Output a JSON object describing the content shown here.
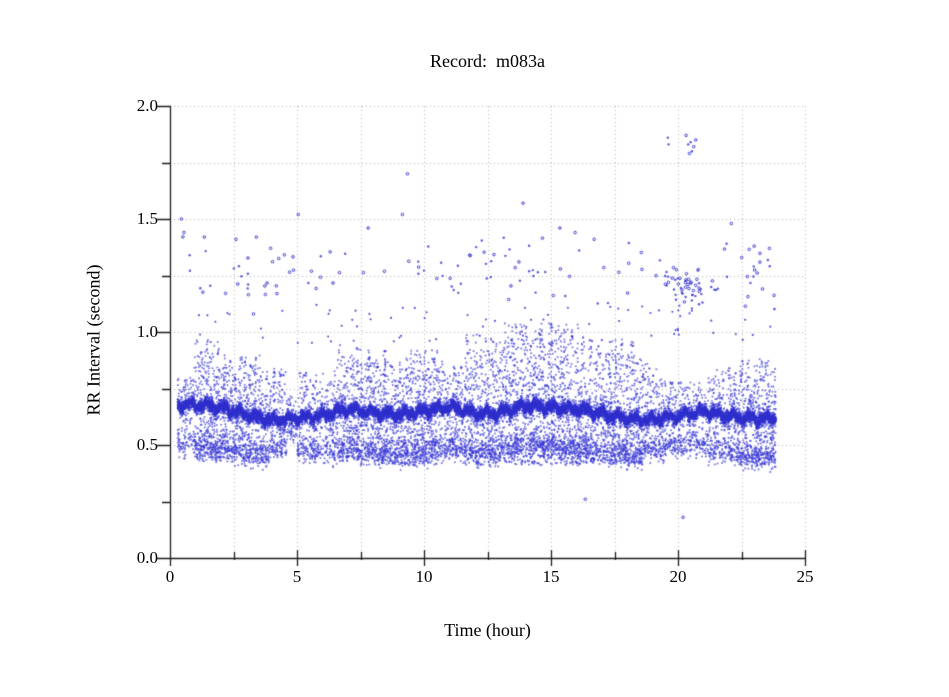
{
  "chart_data": {
    "type": "scatter",
    "title": "Record:  m083a",
    "xlabel": "Time (hour)",
    "ylabel": "RR Interval (second)",
    "xlim": [
      0,
      25
    ],
    "ylim": [
      0.0,
      2.0
    ],
    "x_tick_values": [
      0,
      5,
      10,
      15,
      20,
      25
    ],
    "x_tick_labels": [
      "0",
      "5",
      "10",
      "15",
      "20",
      "25"
    ],
    "x_minor_step": 2.5,
    "y_tick_values": [
      0.0,
      0.5,
      1.0,
      1.5,
      2.0
    ],
    "y_tick_labels": [
      "0.0",
      "0.5",
      "1.0",
      "1.5",
      "2.0"
    ],
    "y_minor_step": 0.25,
    "grid": "dotted, every 0.25 s horizontal and 2.5 h vertical",
    "background": "#ffffff",
    "point_color": "#3939d5",
    "point_stroke_color": "#2f2fcd",
    "grid_color": "#b4b4b4",
    "axis_color": "#1c1c1c",
    "marker": "tiny open/filled circle ~2px",
    "seed": 83,
    "t_range": [
      0.3,
      23.85
    ],
    "points_per_hour": 780,
    "core_points_per_hour": 300,
    "core_track": [
      [
        0.0,
        0.67
      ],
      [
        1.0,
        0.668
      ],
      [
        2.0,
        0.66
      ],
      [
        3.0,
        0.64
      ],
      [
        4.0,
        0.615
      ],
      [
        5.0,
        0.615
      ],
      [
        6.0,
        0.62
      ],
      [
        7.0,
        0.655
      ],
      [
        8.0,
        0.65
      ],
      [
        9.0,
        0.64
      ],
      [
        10.0,
        0.645
      ],
      [
        11.0,
        0.66
      ],
      [
        12.0,
        0.64
      ],
      [
        13.0,
        0.65
      ],
      [
        14.0,
        0.68
      ],
      [
        15.0,
        0.66
      ],
      [
        16.0,
        0.65
      ],
      [
        17.0,
        0.64
      ],
      [
        18.0,
        0.625
      ],
      [
        19.0,
        0.615
      ],
      [
        20.0,
        0.62
      ],
      [
        21.0,
        0.64
      ],
      [
        22.0,
        0.63
      ],
      [
        23.0,
        0.625
      ],
      [
        24.0,
        0.62
      ]
    ],
    "core_wiggle": [
      [
        0.012,
        9.7
      ],
      [
        0.007,
        23.3
      ],
      [
        0.008,
        1.3
      ]
    ],
    "segments": [
      {
        "t": [
          0.3,
          0.95
        ],
        "top": 0.8,
        "bot": 0.46,
        "d": 0.55
      },
      {
        "t": [
          0.95,
          2.1
        ],
        "top": 0.95,
        "bot": 0.42,
        "d": 0.95
      },
      {
        "t": [
          2.1,
          3.9
        ],
        "top": 0.88,
        "bot": 0.41,
        "d": 0.9
      },
      {
        "t": [
          3.9,
          4.6
        ],
        "top": 0.82,
        "bot": 0.45,
        "d": 0.6
      },
      {
        "t": [
          4.6,
          5.0
        ],
        "top": 0.72,
        "bot": 0.52,
        "d": 0.35
      },
      {
        "t": [
          5.0,
          6.4
        ],
        "top": 0.8,
        "bot": 0.44,
        "d": 0.6
      },
      {
        "t": [
          6.4,
          7.6
        ],
        "top": 0.93,
        "bot": 0.42,
        "d": 0.85
      },
      {
        "t": [
          7.6,
          10.6
        ],
        "top": 0.9,
        "bot": 0.4,
        "d": 0.9
      },
      {
        "t": [
          10.6,
          11.6
        ],
        "top": 0.85,
        "bot": 0.44,
        "d": 0.7
      },
      {
        "t": [
          11.6,
          13.1
        ],
        "top": 0.97,
        "bot": 0.4,
        "d": 0.9
      },
      {
        "t": [
          13.1,
          16.4
        ],
        "top": 1.02,
        "bot": 0.4,
        "d": 1.0
      },
      {
        "t": [
          16.4,
          18.6
        ],
        "top": 0.95,
        "bot": 0.41,
        "d": 0.9
      },
      {
        "t": [
          18.6,
          19.5
        ],
        "top": 0.84,
        "bot": 0.44,
        "d": 0.65
      },
      {
        "t": [
          19.5,
          21.2
        ],
        "top": 0.76,
        "bot": 0.46,
        "d": 0.5
      },
      {
        "t": [
          21.2,
          22.4
        ],
        "top": 0.82,
        "bot": 0.43,
        "d": 0.65
      },
      {
        "t": [
          22.4,
          23.85
        ],
        "top": 0.86,
        "bot": 0.4,
        "d": 0.9
      }
    ],
    "upper_scatter": [
      {
        "t": [
          0.3,
          5.0
        ],
        "n": 30
      },
      {
        "t": [
          5.0,
          8.0
        ],
        "n": 10
      },
      {
        "t": [
          8.0,
          12.0
        ],
        "n": 18
      },
      {
        "t": [
          12.0,
          17.0
        ],
        "n": 30
      },
      {
        "t": [
          17.0,
          19.4
        ],
        "n": 10
      },
      {
        "t": [
          21.0,
          23.9
        ],
        "n": 24
      }
    ],
    "upper_scatter_band": {
      "center": 1.27,
      "sigma": 0.085,
      "min": 1.08,
      "max": 1.47
    },
    "upper_cluster": {
      "t": [
        19.4,
        21.0
      ],
      "n": 48,
      "center": 1.21,
      "sigma": 0.045,
      "min": 1.12,
      "max": 1.31
    },
    "upper_cluster_trail": {
      "t": [
        19.6,
        20.6
      ],
      "n": 10,
      "y": [
        0.98,
        1.12
      ]
    },
    "transition_scatter": {
      "t": [
        0.9,
        23.85
      ],
      "n": 70,
      "y": [
        0.95,
        1.12
      ]
    },
    "mid_high_points": [
      [
        0.45,
        1.5
      ],
      [
        0.55,
        1.44
      ],
      [
        1.35,
        1.42
      ],
      [
        2.6,
        1.41
      ],
      [
        3.4,
        1.42
      ],
      [
        5.05,
        1.52
      ],
      [
        7.8,
        1.46
      ],
      [
        9.15,
        1.52
      ],
      [
        9.35,
        1.7
      ],
      [
        13.9,
        1.57
      ],
      [
        15.35,
        1.46
      ],
      [
        15.95,
        1.44
      ],
      [
        16.7,
        1.41
      ],
      [
        22.1,
        1.48
      ],
      [
        23.0,
        1.38
      ],
      [
        23.6,
        1.37
      ]
    ],
    "high_outliers": [
      [
        19.6,
        1.86
      ],
      [
        19.63,
        1.83
      ],
      [
        20.32,
        1.87
      ],
      [
        20.4,
        1.83
      ],
      [
        20.45,
        1.79
      ],
      [
        20.5,
        1.84
      ],
      [
        20.55,
        1.8
      ],
      [
        20.62,
        1.82
      ],
      [
        20.7,
        1.85
      ]
    ],
    "low_outliers": [
      [
        16.35,
        0.26
      ],
      [
        20.2,
        0.18
      ]
    ]
  }
}
